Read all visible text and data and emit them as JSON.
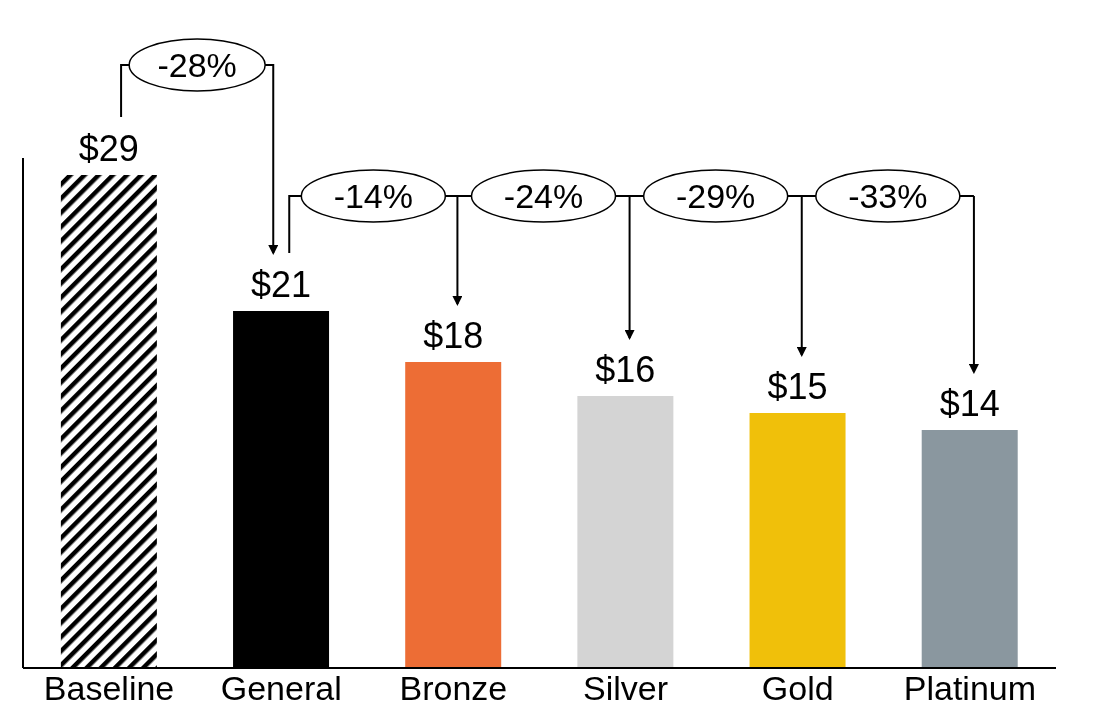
{
  "chart_data": {
    "type": "bar",
    "categories": [
      "Baseline",
      "General",
      "Bronze",
      "Silver",
      "Gold",
      "Platinum"
    ],
    "values": [
      29,
      21,
      18,
      16,
      15,
      14
    ],
    "value_labels": [
      "$29",
      "$21",
      "$18",
      "$16",
      "$15",
      "$14"
    ],
    "colors": [
      "#000000",
      "#000000",
      "#ed6d35",
      "#d4d4d4",
      "#f0c00a",
      "#8a979f"
    ],
    "tick_labels": "x",
    "grid": false,
    "legend": false,
    "annotations": [
      "-28%",
      "-14%",
      "-24%",
      "-29%",
      "-33%"
    ]
  }
}
